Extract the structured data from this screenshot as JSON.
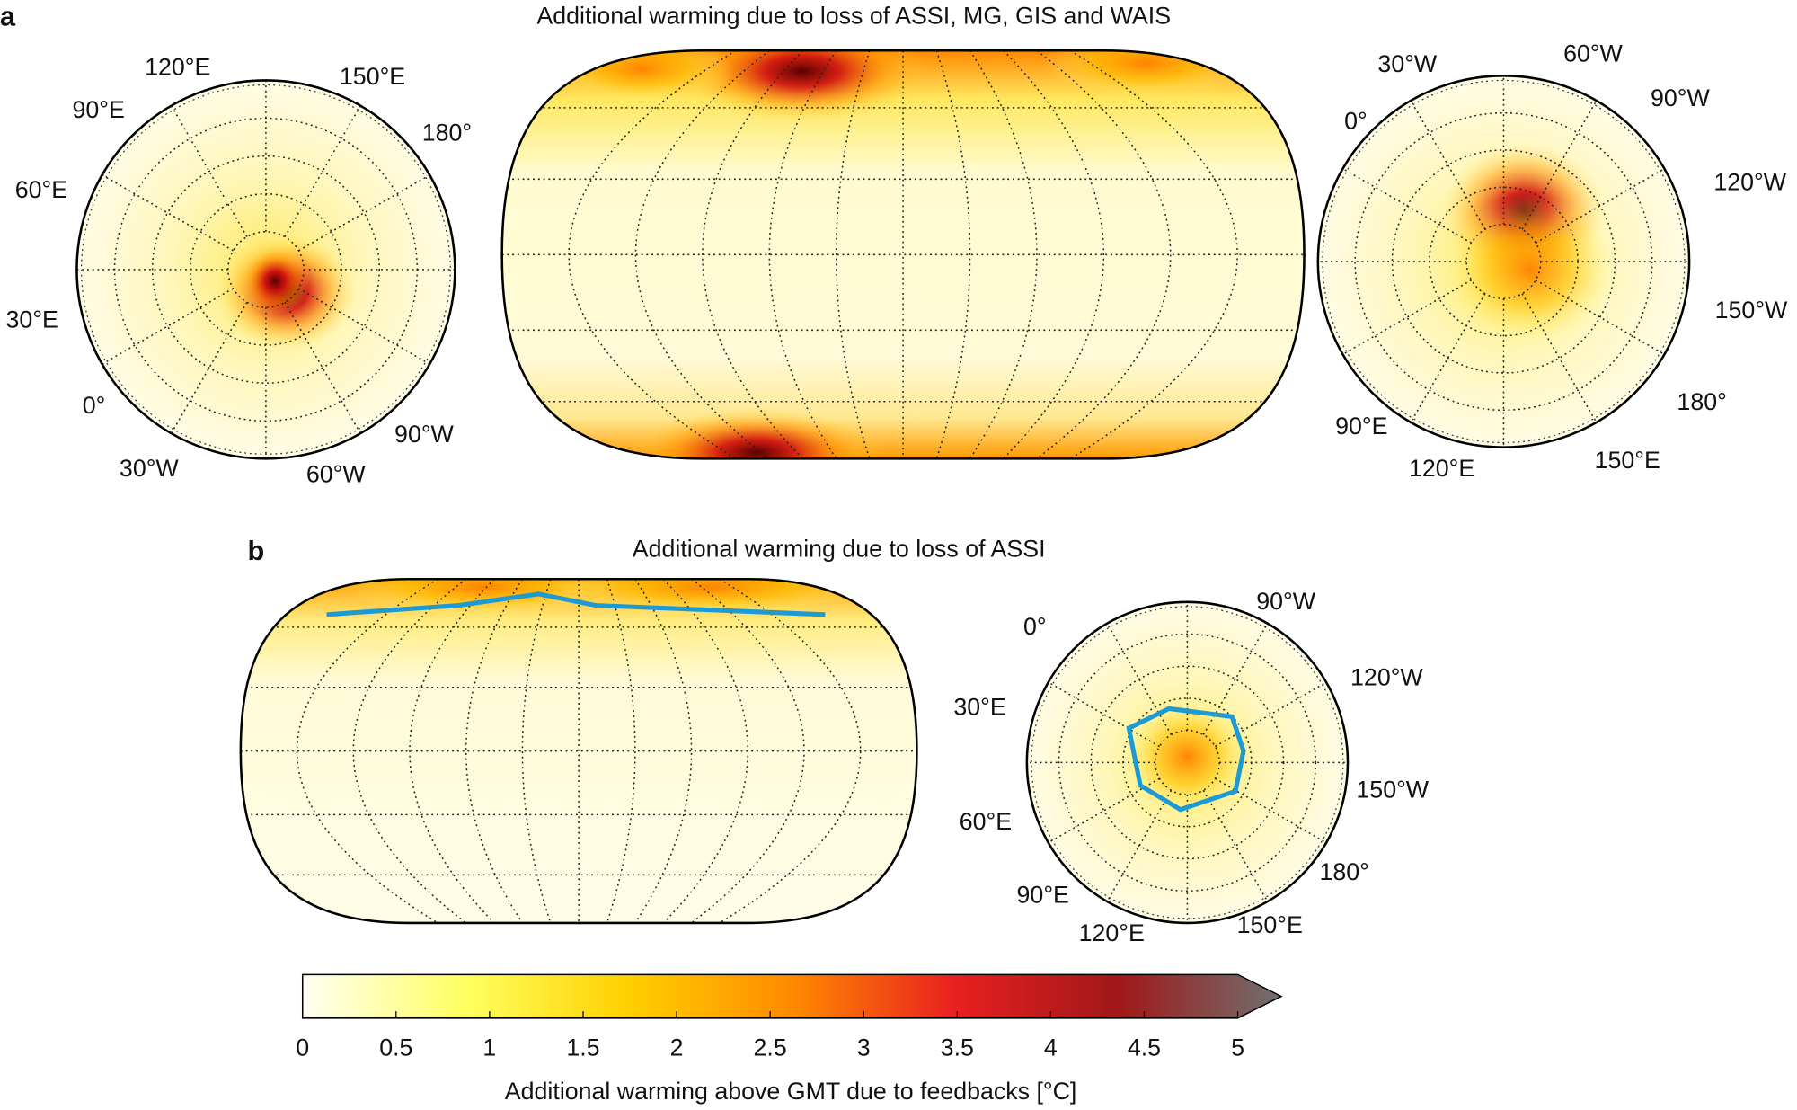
{
  "panel_a": {
    "label": "a",
    "title": "Additional warming due to loss of ASSI, MG, GIS and WAIS",
    "south_polar_labels": [
      "120°E",
      "150°E",
      "90°E",
      "180°",
      "60°E",
      "30°E",
      "0°",
      "90°W",
      "30°W",
      "60°W"
    ],
    "north_polar_labels": [
      "30°W",
      "60°W",
      "0°",
      "90°W",
      "120°W",
      "150°W",
      "180°",
      "90°E",
      "120°E",
      "150°E"
    ]
  },
  "panel_b": {
    "label": "b",
    "title": "Additional warming due to loss of ASSI",
    "north_polar_labels": [
      "0°",
      "90°W",
      "30°E",
      "120°W",
      "150°W",
      "60°E",
      "180°",
      "90°E",
      "120°E",
      "150°E"
    ]
  },
  "colorbar": {
    "lim": [
      0,
      5
    ],
    "ticks": [
      0,
      0.5,
      1,
      1.5,
      2,
      2.5,
      3,
      3.5,
      4,
      4.5,
      5
    ],
    "colors": [
      "#fffff4",
      "#ffff60",
      "#ffd000",
      "#ff8a00",
      "#e82020",
      "#a01818",
      "#707070"
    ],
    "label": "Additional warming above GMT due to feedbacks [°C]"
  }
}
